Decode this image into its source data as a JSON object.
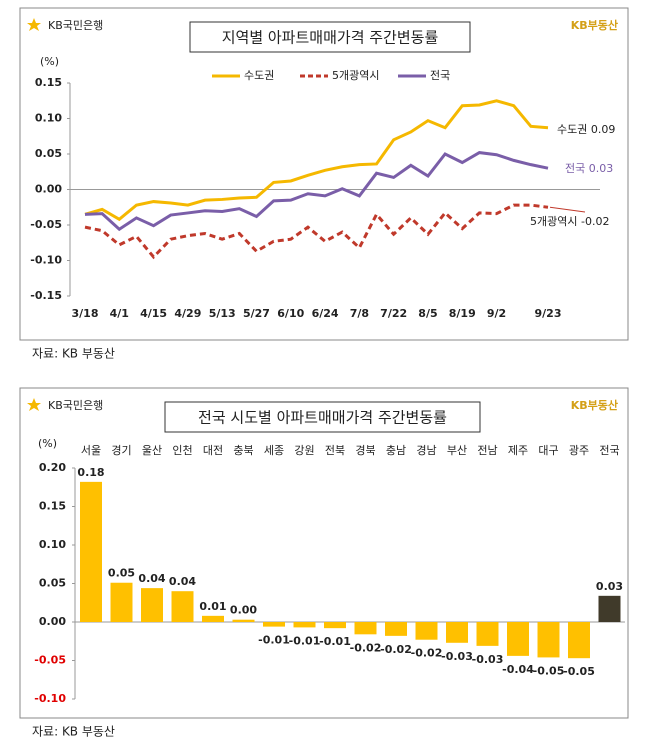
{
  "chart_data": [
    {
      "type": "line",
      "title": "지역별 아파트매매가격 주간변동률",
      "logo_left": "KB국민은행",
      "logo_right": "KB부동산",
      "unit": "(%)",
      "source": "자료: KB 부동산",
      "categories": [
        "3/18",
        null,
        "4/1",
        null,
        "4/15",
        null,
        "4/29",
        null,
        "5/13",
        null,
        "5/27",
        null,
        "6/10",
        null,
        "6/24",
        null,
        "7/8",
        null,
        "7/22",
        null,
        "8/5",
        null,
        "8/19",
        null,
        "9/2",
        null,
        null,
        "9/23"
      ],
      "series": [
        {
          "name": "수도권",
          "color": "#f5b800",
          "dash": false,
          "values": [
            -0.035,
            -0.028,
            -0.042,
            -0.022,
            -0.017,
            -0.019,
            -0.022,
            -0.015,
            -0.014,
            -0.012,
            -0.011,
            0.01,
            0.012,
            0.02,
            0.027,
            0.032,
            0.035,
            0.036,
            0.07,
            0.081,
            0.097,
            0.087,
            0.118,
            0.119,
            0.125,
            0.118,
            0.089,
            0.087
          ]
        },
        {
          "name": "5개광역시",
          "color": "#c0392b",
          "dash": true,
          "values": [
            -0.053,
            -0.058,
            -0.078,
            -0.066,
            -0.095,
            -0.07,
            -0.065,
            -0.062,
            -0.07,
            -0.062,
            -0.087,
            -0.073,
            -0.07,
            -0.053,
            -0.073,
            -0.06,
            -0.082,
            -0.035,
            -0.063,
            -0.04,
            -0.063,
            -0.033,
            -0.055,
            -0.033,
            -0.034,
            -0.022,
            -0.022,
            -0.025
          ]
        },
        {
          "name": "전국",
          "color": "#7a5ea8",
          "dash": false,
          "values": [
            -0.035,
            -0.034,
            -0.056,
            -0.04,
            -0.051,
            -0.036,
            -0.033,
            -0.03,
            -0.031,
            -0.027,
            -0.038,
            -0.016,
            -0.015,
            -0.006,
            -0.009,
            0.001,
            -0.009,
            0.023,
            0.017,
            0.034,
            0.019,
            0.05,
            0.038,
            0.052,
            0.049,
            0.041,
            0.035,
            0.03
          ]
        }
      ],
      "annotations": [
        "수도권 0.09",
        "5개광역시 -0.02",
        "전국 0.03"
      ],
      "ylim": [
        -0.15,
        0.15
      ],
      "yticks": [
        0.15,
        {
          "value": 0.1,
          "label": "0.10"
        },
        0.05,
        {
          "value": 0,
          "label": "0.00"
        },
        -0.05,
        {
          "value": -0.1,
          "label": "-0.10"
        },
        -0.15
      ]
    },
    {
      "type": "bar",
      "title": "전국 시도별 아파트매매가격 주간변동률",
      "logo_left": "KB국민은행",
      "logo_right": "KB부동산",
      "unit": "(%)",
      "source": "자료: KB 부동산",
      "categories": [
        "서울",
        "경기",
        "울산",
        "인천",
        "대전",
        "충북",
        "세종",
        "강원",
        "전북",
        "경북",
        "충남",
        "경남",
        "부산",
        "전남",
        "제주",
        "대구",
        "광주",
        "전국"
      ],
      "values": [
        0.182,
        0.051,
        0.044,
        0.04,
        0.008,
        0.003,
        -0.006,
        -0.007,
        -0.008,
        -0.016,
        -0.018,
        -0.023,
        -0.027,
        -0.031,
        -0.044,
        -0.046,
        -0.047,
        0.034
      ],
      "value_labels": [
        "0.18",
        "0.05",
        "0.04",
        "0.04",
        "0.01",
        "0.00",
        "-0.01",
        "-0.01",
        "-0.01",
        "-0.02",
        "-0.02",
        "-0.02",
        "-0.03",
        "-0.03",
        "-0.04",
        "-0.05",
        "-0.05",
        "0.03"
      ],
      "colors": [
        "#ffc000",
        "#ffc000",
        "#ffc000",
        "#ffc000",
        "#ffc000",
        "#ffc000",
        "#ffc000",
        "#ffc000",
        "#ffc000",
        "#ffc000",
        "#ffc000",
        "#ffc000",
        "#ffc000",
        "#ffc000",
        "#ffc000",
        "#ffc000",
        "#ffc000",
        "#403a2a"
      ],
      "negative_tick_color": "#e00000",
      "ylim": [
        -0.1,
        0.2
      ],
      "yticks": [
        {
          "value": 0.2,
          "label": "0.20"
        },
        0.15,
        {
          "value": 0.1,
          "label": "0.10"
        },
        0.05,
        {
          "value": 0,
          "label": "0.00"
        },
        -0.05,
        {
          "value": -0.1,
          "label": "-0.10"
        }
      ]
    }
  ]
}
